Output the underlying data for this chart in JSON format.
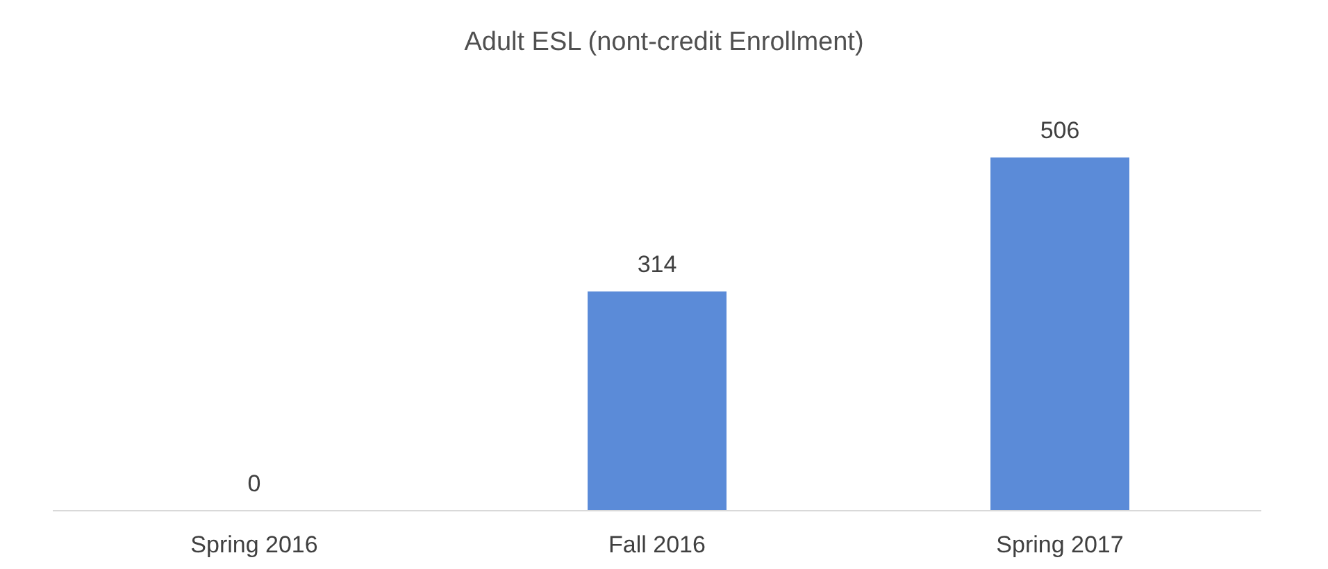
{
  "chart_data": {
    "type": "bar",
    "title": "Adult ESL (nont-credit Enrollment)",
    "categories": [
      "Spring 2016",
      "Fall 2016",
      "Spring 2017"
    ],
    "values": [
      0,
      314,
      506
    ],
    "color": "#5b8bd8",
    "data_labels": true,
    "grid": false,
    "legend": false
  }
}
